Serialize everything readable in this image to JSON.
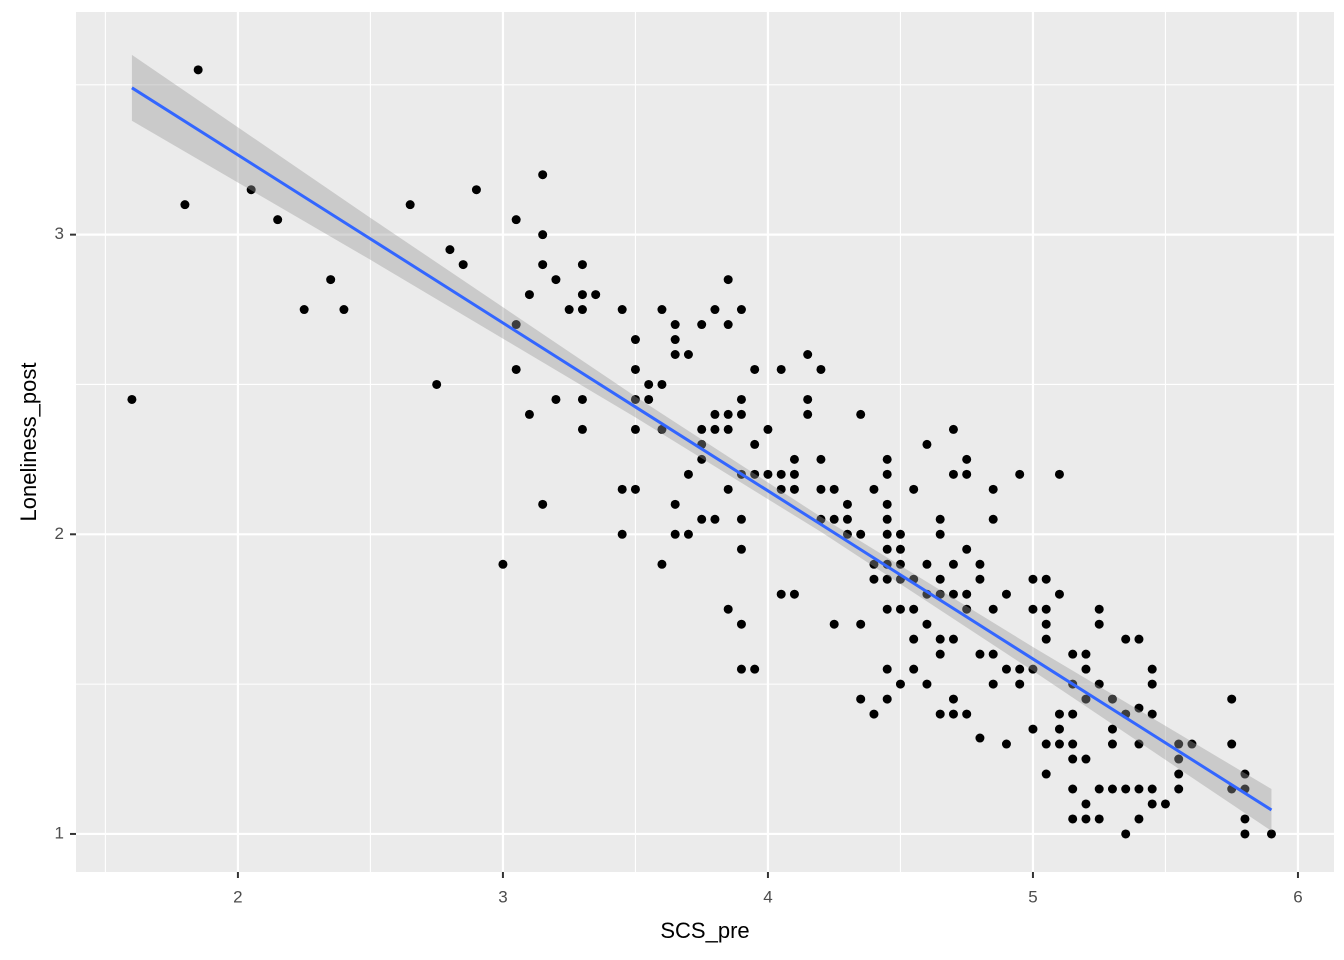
{
  "chart_data": {
    "type": "scatter",
    "x_label": "SCS_pre",
    "y_label": "Loneliness_post",
    "xlim": [
      1.389,
      6.136
    ],
    "ylim": [
      0.873,
      3.743
    ],
    "xticks": [
      2,
      3,
      4,
      5,
      6
    ],
    "yticks": [
      1,
      2,
      3
    ],
    "xminor_ticks": [
      1.5,
      2.5,
      3.5,
      4.5,
      5.5
    ],
    "yminor_ticks": [
      1.5,
      2.5,
      3.5
    ],
    "grid": true,
    "color": "#000000",
    "x": [
      1.6,
      1.8,
      1.85,
      2.05,
      2.15,
      2.25,
      2.35,
      2.4,
      2.65,
      2.75,
      2.8,
      2.85,
      2.9,
      3.0,
      3.05,
      3.05,
      3.05,
      3.1,
      3.1,
      3.15,
      3.15,
      3.15,
      3.15,
      3.2,
      3.2,
      3.25,
      3.3,
      3.3,
      3.3,
      3.3,
      3.3,
      3.35,
      3.45,
      3.45,
      3.45,
      3.5,
      3.5,
      3.5,
      3.5,
      3.5,
      3.55,
      3.55,
      3.6,
      3.6,
      3.6,
      3.6,
      3.65,
      3.65,
      3.65,
      3.65,
      3.65,
      3.7,
      3.7,
      3.7,
      3.75,
      3.75,
      3.75,
      3.75,
      3.75,
      3.8,
      3.8,
      3.8,
      3.8,
      3.85,
      3.85,
      3.85,
      3.85,
      3.85,
      3.85,
      3.9,
      3.9,
      3.9,
      3.9,
      3.9,
      3.9,
      3.9,
      3.9,
      3.95,
      3.95,
      3.95,
      3.95,
      4.0,
      4.0,
      4.05,
      4.05,
      4.05,
      4.05,
      4.1,
      4.1,
      4.1,
      4.1,
      4.15,
      4.15,
      4.15,
      4.2,
      4.2,
      4.2,
      4.2,
      4.25,
      4.25,
      4.25,
      4.3,
      4.3,
      4.3,
      4.35,
      4.35,
      4.35,
      4.35,
      4.4,
      4.4,
      4.4,
      4.4,
      4.45,
      4.45,
      4.45,
      4.45,
      4.45,
      4.45,
      4.45,
      4.45,
      4.45,
      4.45,
      4.45,
      4.5,
      4.5,
      4.5,
      4.5,
      4.5,
      4.5,
      4.55,
      4.55,
      4.55,
      4.55,
      4.55,
      4.6,
      4.6,
      4.6,
      4.6,
      4.6,
      4.65,
      4.65,
      4.65,
      4.65,
      4.65,
      4.65,
      4.65,
      4.7,
      4.7,
      4.7,
      4.7,
      4.7,
      4.7,
      4.7,
      4.75,
      4.75,
      4.75,
      4.75,
      4.75,
      4.75,
      4.8,
      4.8,
      4.8,
      4.8,
      4.85,
      4.85,
      4.85,
      4.85,
      4.85,
      4.9,
      4.9,
      4.9,
      4.95,
      4.95,
      4.95,
      5.0,
      5.0,
      5.0,
      5.0,
      5.05,
      5.05,
      5.05,
      5.05,
      5.05,
      5.05,
      5.1,
      5.1,
      5.1,
      5.1,
      5.1,
      5.15,
      5.15,
      5.15,
      5.15,
      5.15,
      5.15,
      5.15,
      5.2,
      5.2,
      5.2,
      5.2,
      5.2,
      5.2,
      5.25,
      5.25,
      5.25,
      5.25,
      5.25,
      5.3,
      5.3,
      5.3,
      5.3,
      5.35,
      5.35,
      5.35,
      5.35,
      5.4,
      5.4,
      5.4,
      5.4,
      5.4,
      5.45,
      5.45,
      5.45,
      5.45,
      5.45,
      5.5,
      5.55,
      5.55,
      5.55,
      5.55,
      5.6,
      5.75,
      5.75,
      5.75,
      5.8,
      5.8,
      5.8,
      5.8,
      5.9
    ],
    "y": [
      2.45,
      3.1,
      3.55,
      3.15,
      3.05,
      2.75,
      2.85,
      2.75,
      3.1,
      2.5,
      2.95,
      2.9,
      3.15,
      1.9,
      3.05,
      2.7,
      2.55,
      2.8,
      2.4,
      3.2,
      3.0,
      2.9,
      2.1,
      2.85,
      2.45,
      2.75,
      2.9,
      2.8,
      2.75,
      2.45,
      2.35,
      2.8,
      2.75,
      2.15,
      2.0,
      2.65,
      2.55,
      2.45,
      2.35,
      2.15,
      2.5,
      2.45,
      2.75,
      2.5,
      2.35,
      1.9,
      2.7,
      2.65,
      2.6,
      2.1,
      2.0,
      2.6,
      2.2,
      2.0,
      2.7,
      2.35,
      2.3,
      2.25,
      2.05,
      2.75,
      2.4,
      2.35,
      2.05,
      2.85,
      2.7,
      2.4,
      2.35,
      2.15,
      1.75,
      2.75,
      2.45,
      2.4,
      2.2,
      2.05,
      1.95,
      1.7,
      1.55,
      2.3,
      2.2,
      2.55,
      1.55,
      2.35,
      2.2,
      2.55,
      2.2,
      2.15,
      1.8,
      2.25,
      2.2,
      2.15,
      1.8,
      2.6,
      2.45,
      2.4,
      2.55,
      2.25,
      2.15,
      2.05,
      2.15,
      2.05,
      1.7,
      2.1,
      2.05,
      2.0,
      2.4,
      2.0,
      1.7,
      1.45,
      2.15,
      1.9,
      1.85,
      1.4,
      2.25,
      2.2,
      2.1,
      2.05,
      2.0,
      1.95,
      1.9,
      1.85,
      1.75,
      1.55,
      1.45,
      2.0,
      1.95,
      1.9,
      1.85,
      1.75,
      1.5,
      2.15,
      1.85,
      1.75,
      1.65,
      1.55,
      2.3,
      1.9,
      1.8,
      1.7,
      1.5,
      2.05,
      2.0,
      1.85,
      1.8,
      1.65,
      1.6,
      1.4,
      2.35,
      2.2,
      1.9,
      1.8,
      1.65,
      1.45,
      1.4,
      2.25,
      2.2,
      1.95,
      1.8,
      1.75,
      1.4,
      1.9,
      1.85,
      1.6,
      1.32,
      2.15,
      2.05,
      1.75,
      1.6,
      1.5,
      1.8,
      1.55,
      1.3,
      2.2,
      1.55,
      1.5,
      1.85,
      1.75,
      1.55,
      1.35,
      1.85,
      1.75,
      1.7,
      1.65,
      1.3,
      1.2,
      2.2,
      1.8,
      1.4,
      1.35,
      1.3,
      1.6,
      1.5,
      1.4,
      1.3,
      1.25,
      1.15,
      1.05,
      1.6,
      1.55,
      1.45,
      1.25,
      1.1,
      1.05,
      1.75,
      1.7,
      1.5,
      1.15,
      1.05,
      1.45,
      1.35,
      1.3,
      1.15,
      1.4,
      1.65,
      1.15,
      1.0,
      1.65,
      1.42,
      1.3,
      1.15,
      1.05,
      1.55,
      1.5,
      1.4,
      1.15,
      1.1,
      1.1,
      1.3,
      1.25,
      1.2,
      1.15,
      1.3,
      1.45,
      1.3,
      1.15,
      1.2,
      1.15,
      1.05,
      1.0,
      1.0
    ],
    "fit": {
      "color": "#3366ff",
      "band_color": "#999999",
      "x": [
        1.6,
        2.5,
        3.5,
        4.2,
        5.0,
        5.9
      ],
      "values": [
        3.49,
        2.986,
        2.425,
        2.033,
        1.584,
        1.08
      ],
      "lower": [
        3.38,
        2.916,
        2.39,
        2.008,
        1.544,
        1.01
      ],
      "upper": [
        3.6,
        3.056,
        2.46,
        2.058,
        1.624,
        1.15
      ]
    }
  }
}
